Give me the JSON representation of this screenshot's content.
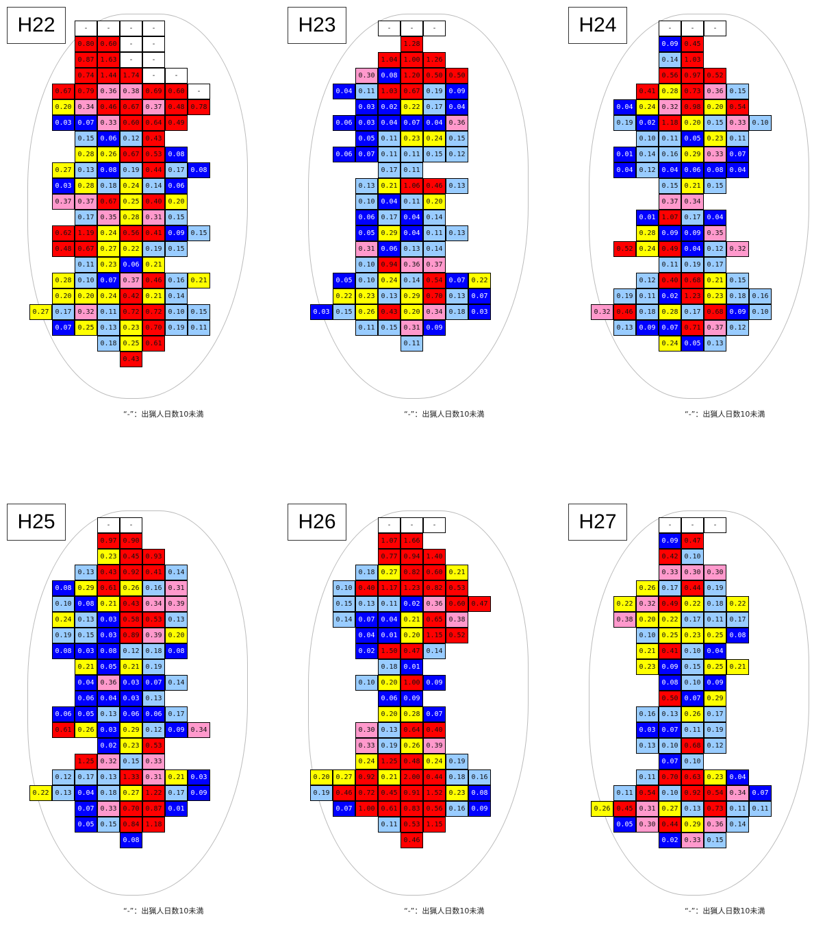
{
  "note": "“-”：出猟人日数10未満",
  "panels": [
    {
      "title": "H22",
      "cells": [
        [
          "-",
          "-",
          "-",
          "-"
        ],
        [
          "0.80",
          "0.60",
          "-",
          "-"
        ],
        [
          "0.87",
          "1.63",
          "-",
          "-"
        ],
        [
          "0.74",
          "1.44",
          "1.74",
          "-",
          "-"
        ],
        [
          "0.67",
          "0.79",
          "0.36",
          "0.38",
          "0.69",
          "0.60",
          "-"
        ],
        [
          "0.20",
          "0.34",
          "0.46",
          "0.67",
          "0.37",
          "0.48",
          "0.78"
        ],
        [
          "0.03",
          "0.07",
          "0.33",
          "0.60",
          "0.64",
          "0.49"
        ],
        [
          "0.15",
          "0.06",
          "0.12",
          "0.43"
        ],
        [
          "0.28",
          "0.26",
          "0.67",
          "0.53",
          "0.08"
        ],
        [
          "0.27",
          "0.13",
          "0.08",
          "0.19",
          "0.44",
          "0.17",
          "0.08"
        ],
        [
          "0.03",
          "0.28",
          "0.18",
          "0.24",
          "0.14",
          "0.06"
        ],
        [
          "0.37",
          "0.37",
          "0.67",
          "0.25",
          "0.40",
          "0.20"
        ],
        [
          "0.17",
          "0.35",
          "0.28",
          "0.31",
          "0.15"
        ],
        [
          "0.62",
          "1.19",
          "0.24",
          "0.56",
          "0.41",
          "0.09",
          "0.15"
        ],
        [
          "0.48",
          "0.67",
          "0.27",
          "0.22",
          "0.19",
          "0.15"
        ],
        [
          "0.11",
          "0.23",
          "0.06",
          "0.21"
        ],
        [
          "0.28",
          "0.10",
          "0.07",
          "0.37",
          "0.46",
          "0.16",
          "0.21"
        ],
        [
          "0.20",
          "0.20",
          "0.24",
          "0.42",
          "0.21",
          "0.14"
        ],
        [
          "0.27",
          "0.17",
          "0.32",
          "0.11",
          "0.72",
          "0.72",
          "0.10",
          "0.15"
        ],
        [
          "0.07",
          "0.25",
          "0.13",
          "0.23",
          "0.70",
          "0.19",
          "0.11"
        ],
        [
          "0.18",
          "0.25",
          "0.61"
        ],
        [
          "0.43"
        ]
      ]
    },
    {
      "title": "H23",
      "cells": [
        [
          "-",
          "-",
          "-"
        ],
        [
          "1.28"
        ],
        [
          "1.04",
          "1.00",
          "1.26"
        ],
        [
          "0.30",
          "0.08",
          "1.20",
          "0.50",
          "0.50"
        ],
        [
          "0.04",
          "0.11",
          "1.03",
          "0.67",
          "0.19",
          "0.09"
        ],
        [
          "0.03",
          "0.02",
          "0.22",
          "0.17",
          "0.04"
        ],
        [
          "0.06",
          "0.03",
          "0.04",
          "0.07",
          "0.04",
          "0.36"
        ],
        [
          "0.05",
          "0.11",
          "0.23",
          "0.24",
          "0.15"
        ],
        [
          "0.06",
          "0.07",
          "0.11",
          "0.11",
          "0.15",
          "0.12"
        ],
        [
          "0.17",
          "0.11"
        ],
        [
          "0.13",
          "0.21",
          "1.06",
          "0.46",
          "0.13"
        ],
        [
          "0.10",
          "0.04",
          "0.11",
          "0.20"
        ],
        [
          "0.06",
          "0.17",
          "0.04",
          "0.14"
        ],
        [
          "0.05",
          "0.29",
          "0.04",
          "0.11",
          "0.13"
        ],
        [
          "0.31",
          "0.06",
          "0.13",
          "0.14"
        ],
        [
          "0.10",
          "0.94",
          "0.36",
          "0.37"
        ],
        [
          "0.05",
          "0.10",
          "0.24",
          "0.14",
          "0.54",
          "0.07",
          "0.22"
        ],
        [
          "0.22",
          "0.23",
          "0.13",
          "0.29",
          "0.70",
          "0.13",
          "0.07"
        ],
        [
          "0.03",
          "0.15",
          "0.26",
          "0.43",
          "0.20",
          "0.34",
          "0.18",
          "0.03"
        ],
        [
          "0.11",
          "0.15",
          "0.31",
          "0.09"
        ],
        [
          "0.11"
        ]
      ]
    },
    {
      "title": "H24",
      "cells": [
        [
          "-",
          "-",
          "-"
        ],
        [
          "0.09",
          "0.45"
        ],
        [
          "0.14",
          "1.03"
        ],
        [
          "0.56",
          "0.97",
          "0.52"
        ],
        [
          "0.41",
          "0.28",
          "0.73",
          "0.36",
          "0.15"
        ],
        [
          "0.04",
          "0.24",
          "0.32",
          "0.98",
          "0.20",
          "0.54"
        ],
        [
          "0.19",
          "0.02",
          "1.18",
          "0.20",
          "0.15",
          "0.33",
          "0.10"
        ],
        [
          "0.10",
          "0.11",
          "0.05",
          "0.23",
          "0.11"
        ],
        [
          "0.01",
          "0.14",
          "0.16",
          "0.29",
          "0.33",
          "0.07"
        ],
        [
          "0.04",
          "0.12",
          "0.04",
          "0.06",
          "0.08",
          "0.04"
        ],
        [
          "0.15",
          "0.21",
          "0.15"
        ],
        [
          "0.37",
          "0.34"
        ],
        [
          "0.01",
          "1.07",
          "0.17",
          "0.04"
        ],
        [
          "0.28",
          "0.09",
          "0.09",
          "0.35"
        ],
        [
          "0.52",
          "0.24",
          "0.49",
          "0.04",
          "0.12",
          "0.32"
        ],
        [
          "0.11",
          "0.19",
          "0.17"
        ],
        [
          "0.12",
          "0.40",
          "0.68",
          "0.21",
          "0.15"
        ],
        [
          "0.19",
          "0.11",
          "0.02",
          "1.23",
          "0.23",
          "0.18",
          "0.16"
        ],
        [
          "0.32",
          "0.46",
          "0.18",
          "0.28",
          "0.17",
          "0.68",
          "0.09",
          "0.10"
        ],
        [
          "0.13",
          "0.09",
          "0.07",
          "0.71",
          "0.37",
          "0.12"
        ],
        [
          "0.24",
          "0.05",
          "0.13"
        ]
      ]
    },
    {
      "title": "H25",
      "cells": [
        [
          "-",
          "-"
        ],
        [
          "0.97",
          "0.90"
        ],
        [
          "0.23",
          "0.45",
          "0.93"
        ],
        [
          "0.13",
          "0.43",
          "0.92",
          "0.41",
          "0.14"
        ],
        [
          "0.08",
          "0.29",
          "0.61",
          "0.26",
          "0.16",
          "0.31"
        ],
        [
          "0.10",
          "0.08",
          "0.21",
          "0.43",
          "0.34",
          "0.39"
        ],
        [
          "0.24",
          "0.13",
          "0.03",
          "0.58",
          "0.53",
          "0.13"
        ],
        [
          "0.19",
          "0.15",
          "0.03",
          "0.89",
          "0.39",
          "0.20"
        ],
        [
          "0.08",
          "0.03",
          "0.08",
          "0.12",
          "0.18",
          "0.08"
        ],
        [
          "0.21",
          "0.05",
          "0.21",
          "0.19"
        ],
        [
          "0.04",
          "0.36",
          "0.03",
          "0.07",
          "0.14"
        ],
        [
          "0.06",
          "0.04",
          "0.03",
          "0.13"
        ],
        [
          "0.06",
          "0.05",
          "0.13",
          "0.06",
          "0.06",
          "0.17"
        ],
        [
          "0.61",
          "0.26",
          "0.03",
          "0.29",
          "0.12",
          "0.09",
          "0.34"
        ],
        [
          "0.02",
          "0.23",
          "0.53"
        ],
        [
          "1.25",
          "0.32",
          "0.15",
          "0.33"
        ],
        [
          "0.12",
          "0.17",
          "0.13",
          "1.33",
          "0.31",
          "0.21",
          "0.03"
        ],
        [
          "0.22",
          "0.13",
          "0.04",
          "0.18",
          "0.27",
          "1.22",
          "0.17",
          "0.09"
        ],
        [
          "0.07",
          "0.33",
          "0.70",
          "0.87",
          "0.01"
        ],
        [
          "0.05",
          "0.15",
          "0.84",
          "1.18"
        ],
        [
          "0.08"
        ]
      ]
    },
    {
      "title": "H26",
      "cells": [
        [
          "-",
          "-",
          "-"
        ],
        [
          "1.07",
          "1.66"
        ],
        [
          "0.77",
          "0.94",
          "1.40"
        ],
        [
          "0.18",
          "0.27",
          "0.82",
          "0.60",
          "0.21"
        ],
        [
          "0.10",
          "0.40",
          "1.17",
          "1.23",
          "0.82",
          "0.53"
        ],
        [
          "0.15",
          "0.13",
          "0.11",
          "0.02",
          "0.36",
          "0.60",
          "0.47"
        ],
        [
          "0.14",
          "0.07",
          "0.04",
          "0.21",
          "0.65",
          "0.38"
        ],
        [
          "0.04",
          "0.01",
          "0.20",
          "1.15",
          "0.52"
        ],
        [
          "0.02",
          "1.50",
          "0.47",
          "0.14"
        ],
        [
          "0.18",
          "0.01"
        ],
        [
          "0.10",
          "0.20",
          "1.00",
          "0.09"
        ],
        [
          "0.06",
          "0.09"
        ],
        [
          "0.20",
          "0.28",
          "0.07"
        ],
        [
          "0.30",
          "0.13",
          "0.64",
          "0.40"
        ],
        [
          "0.33",
          "0.19",
          "0.26",
          "0.39"
        ],
        [
          "0.24",
          "1.25",
          "0.48",
          "0.24",
          "0.19"
        ],
        [
          "0.20",
          "0.27",
          "0.92",
          "0.21",
          "2.00",
          "0.44",
          "0.18",
          "0.16"
        ],
        [
          "0.19",
          "0.46",
          "0.72",
          "0.45",
          "0.91",
          "1.52",
          "0.23",
          "0.08"
        ],
        [
          "0.07",
          "1.00",
          "0.61",
          "0.83",
          "0.56",
          "0.16",
          "0.09"
        ],
        [
          "0.11",
          "0.53",
          "1.15"
        ],
        [
          "0.46"
        ]
      ]
    },
    {
      "title": "H27",
      "cells": [
        [
          "-",
          "-",
          "-"
        ],
        [
          "0.09",
          "0.47"
        ],
        [
          "0.42",
          "0.10"
        ],
        [
          "0.33",
          "0.30",
          "0.30"
        ],
        [
          "0.26",
          "0.17",
          "0.44",
          "0.19"
        ],
        [
          "0.22",
          "0.32",
          "0.49",
          "0.22",
          "0.18",
          "0.22"
        ],
        [
          "0.38",
          "0.20",
          "0.22",
          "0.17",
          "0.11",
          "0.17"
        ],
        [
          "0.10",
          "0.25",
          "0.23",
          "0.25",
          "0.08"
        ],
        [
          "0.21",
          "0.41",
          "0.10",
          "0.04"
        ],
        [
          "0.23",
          "0.09",
          "0.15",
          "0.25",
          "0.21"
        ],
        [
          "0.08",
          "0.10",
          "0.09"
        ],
        [
          "0.50",
          "0.07",
          "0.29"
        ],
        [
          "0.16",
          "0.13",
          "0.26",
          "0.17"
        ],
        [
          "0.03",
          "0.07",
          "0.11",
          "0.19"
        ],
        [
          "0.13",
          "0.10",
          "0.68",
          "0.12"
        ],
        [
          "0.07",
          "0.10"
        ],
        [
          "0.11",
          "0.70",
          "0.63",
          "0.23",
          "0.04"
        ],
        [
          "0.11",
          "0.54",
          "0.10",
          "0.92",
          "0.54",
          "0.34",
          "0.07"
        ],
        [
          "0.26",
          "0.45",
          "0.31",
          "0.27",
          "0.13",
          "0.73",
          "0.11",
          "0.11"
        ],
        [
          "0.05",
          "0.30",
          "0.44",
          "0.29",
          "0.36",
          "0.14"
        ],
        [
          "0.02",
          "0.33",
          "0.15"
        ]
      ]
    }
  ]
}
